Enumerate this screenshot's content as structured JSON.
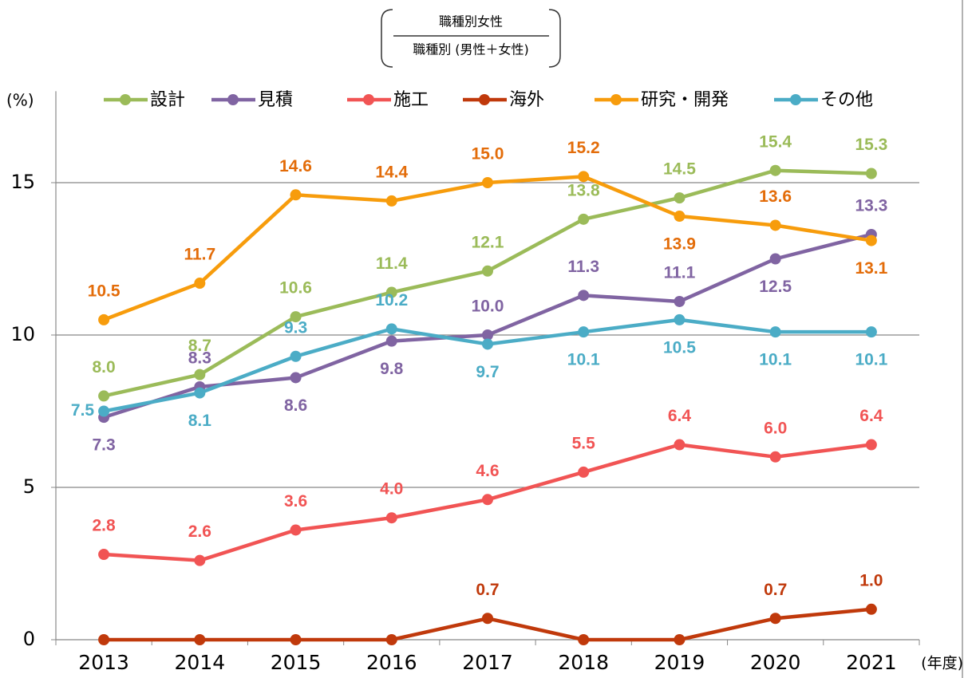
{
  "chart_data": {
    "type": "line",
    "annotations": {
      "numerator": "職種別女性",
      "denominator": "職種別 (男性＋女性)"
    },
    "ylabel": "(%)",
    "xlabel": "(年度)",
    "categories": [
      "2013",
      "2014",
      "2015",
      "2016",
      "2017",
      "2018",
      "2019",
      "2020",
      "2021"
    ],
    "ylim": [
      0,
      18
    ],
    "yticks": [
      0,
      5,
      10,
      15
    ],
    "grid": true,
    "series": [
      {
        "name": "設計",
        "color": "#9bbb59",
        "label_color": "#9bbb59",
        "values": [
          8.0,
          8.7,
          10.6,
          11.4,
          12.1,
          13.8,
          14.5,
          15.4,
          15.3
        ],
        "value_labels": [
          "8.0",
          "8.7",
          "10.6",
          "11.4",
          "12.1",
          "13.8",
          "14.5",
          "15.4",
          "15.3"
        ]
      },
      {
        "name": "見積",
        "color": "#8064a2",
        "label_color": "#8064a2",
        "values": [
          7.3,
          8.3,
          8.6,
          9.8,
          10.0,
          11.3,
          11.1,
          12.5,
          13.3
        ],
        "value_labels": [
          "7.3",
          "8.3",
          "8.6",
          "9.8",
          "10.0",
          "11.3",
          "11.1",
          "12.5",
          "13.3"
        ]
      },
      {
        "name": "施工",
        "color": "#f15454",
        "label_color": "#f15454",
        "values": [
          2.8,
          2.6,
          3.6,
          4.0,
          4.6,
          5.5,
          6.4,
          6.0,
          6.4
        ],
        "value_labels": [
          "2.8",
          "2.6",
          "3.6",
          "4.0",
          "4.6",
          "5.5",
          "6.4",
          "6.0",
          "6.4"
        ]
      },
      {
        "name": "海外",
        "color": "#c0390b",
        "label_color": "#c0390b",
        "values": [
          0,
          0,
          0,
          0,
          0.7,
          0,
          0,
          0.7,
          1.0
        ],
        "value_labels": [
          null,
          null,
          null,
          null,
          "0.7",
          null,
          null,
          "0.7",
          "1.0"
        ]
      },
      {
        "name": "研究・開発",
        "color": "#f79c0c",
        "label_color": "#e36c09",
        "values": [
          10.5,
          11.7,
          14.6,
          14.4,
          15.0,
          15.2,
          13.9,
          13.6,
          13.1
        ],
        "value_labels": [
          "10.5",
          "11.7",
          "14.6",
          "14.4",
          "15.0",
          "15.2",
          "13.9",
          "13.6",
          "13.1"
        ]
      },
      {
        "name": "その他",
        "color": "#4bacc6",
        "label_color": "#4bacc6",
        "values": [
          7.5,
          8.1,
          9.3,
          10.2,
          9.7,
          10.1,
          10.5,
          10.1,
          10.1
        ],
        "value_labels": [
          "7.5",
          "8.1",
          "9.3",
          "10.2",
          "9.7",
          "10.1",
          "10.5",
          "10.1",
          "10.1"
        ]
      }
    ]
  }
}
